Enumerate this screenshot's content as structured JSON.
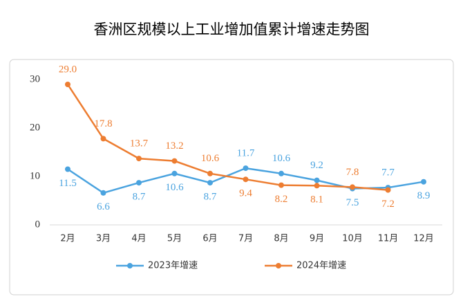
{
  "chart_data": {
    "type": "line",
    "title": "香洲区规模以上工业增加值累计增速走势图",
    "categories": [
      "2月",
      "3月",
      "4月",
      "5月",
      "6月",
      "7月",
      "8月",
      "9月",
      "10月",
      "11月",
      "12月"
    ],
    "series": [
      {
        "name": "2023年增速",
        "color": "#4aa3df",
        "values": [
          11.5,
          6.6,
          8.7,
          10.6,
          8.7,
          11.7,
          10.6,
          9.2,
          7.5,
          7.7,
          8.9
        ],
        "value_labels": [
          "11.5",
          "6.6",
          "8.7",
          "10.6",
          "8.7",
          "11.7",
          "10.6",
          "9.2",
          "7.5",
          "7.7",
          "8.9"
        ]
      },
      {
        "name": "2024年增速",
        "color": "#ed7d31",
        "values": [
          29.0,
          17.8,
          13.7,
          13.2,
          10.6,
          9.4,
          8.2,
          8.1,
          7.8,
          7.2,
          null
        ],
        "value_labels": [
          "29.0",
          "17.8",
          "13.7",
          "13.2",
          "10.6",
          "9.4",
          "8.2",
          "8.1",
          "7.8",
          "7.2",
          null
        ]
      }
    ],
    "ylim": [
      0,
      30
    ],
    "yticks": [
      0,
      10,
      20,
      30
    ],
    "grid": false,
    "legend": "bottom"
  }
}
